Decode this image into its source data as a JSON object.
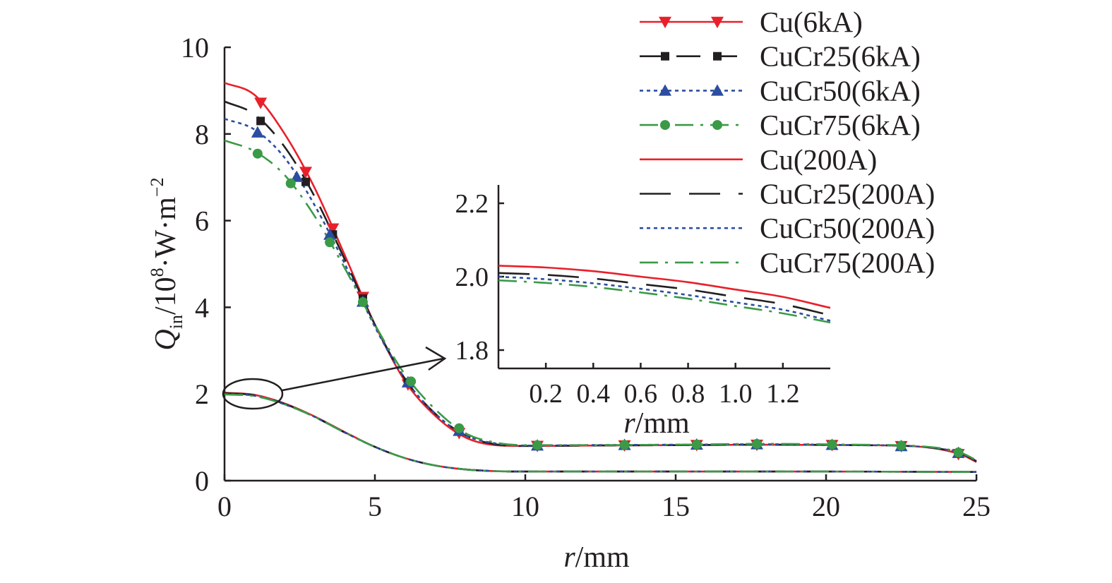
{
  "chart_data": [
    {
      "type": "line",
      "title": "",
      "xlabel": "r/mm",
      "ylabel": "Q_in/10^8·W·m^-2",
      "xlim": [
        0,
        25
      ],
      "ylim": [
        0,
        10
      ],
      "x_ticks": [
        "0",
        "5",
        "10",
        "15",
        "20",
        "25"
      ],
      "y_ticks": [
        "0",
        "2",
        "4",
        "6",
        "8",
        "10"
      ],
      "legend_position": "top-right",
      "grid": false,
      "series": [
        {
          "name": "Cu(6kA)",
          "color": "#e8202a",
          "dash": "solid",
          "marker": "triangle-down",
          "x": [
            0,
            1,
            2,
            3,
            4,
            5,
            6,
            7,
            8,
            9,
            10,
            12,
            15,
            18,
            21,
            23,
            24.5,
            25
          ],
          "y": [
            9.18,
            8.9,
            8.0,
            6.75,
            5.2,
            3.6,
            2.3,
            1.5,
            1.0,
            0.82,
            0.8,
            0.81,
            0.82,
            0.83,
            0.82,
            0.79,
            0.6,
            0.43
          ],
          "marker_x": [
            1.2,
            2.7,
            3.6,
            4.6,
            6.1,
            7.8,
            10.4,
            13.3,
            15.7,
            17.7,
            20.2,
            22.5,
            24.4
          ]
        },
        {
          "name": "CuCr25(6kA)",
          "color": "#231f20",
          "dash": "dash",
          "marker": "square",
          "x": [
            0,
            1,
            2,
            3,
            4,
            5,
            6,
            7,
            8,
            9,
            10,
            12,
            15,
            18,
            21,
            23,
            24.5,
            25
          ],
          "y": [
            8.75,
            8.45,
            7.7,
            6.55,
            5.1,
            3.6,
            2.35,
            1.55,
            1.05,
            0.84,
            0.8,
            0.81,
            0.82,
            0.83,
            0.82,
            0.79,
            0.62,
            0.45
          ],
          "marker_x": [
            1.2,
            2.7,
            3.6,
            4.6,
            6.1,
            7.8,
            10.4,
            13.3,
            15.7,
            17.7,
            20.2,
            22.5,
            24.4
          ]
        },
        {
          "name": "CuCr50(6kA)",
          "color": "#2b4ea0",
          "dash": "dot",
          "marker": "triangle-up",
          "x": [
            0,
            1,
            2,
            3,
            4,
            5,
            6,
            7,
            8,
            9,
            10,
            12,
            15,
            18,
            21,
            23,
            24.5,
            25
          ],
          "y": [
            8.35,
            8.1,
            7.45,
            6.35,
            5.0,
            3.55,
            2.35,
            1.55,
            1.05,
            0.86,
            0.81,
            0.82,
            0.83,
            0.84,
            0.82,
            0.79,
            0.63,
            0.46
          ],
          "marker_x": [
            1.1,
            2.4,
            3.5,
            4.6,
            6.1,
            7.8,
            10.4,
            13.3,
            15.7,
            17.7,
            20.2,
            22.5,
            24.4
          ]
        },
        {
          "name": "CuCr75(6kA)",
          "color": "#3a9a46",
          "dash": "dashdot",
          "marker": "circle",
          "x": [
            0,
            1,
            2,
            3,
            4,
            5,
            6,
            7,
            8,
            9,
            10,
            12,
            15,
            18,
            21,
            23,
            24.5,
            25
          ],
          "y": [
            7.85,
            7.6,
            7.05,
            6.1,
            4.9,
            3.6,
            2.45,
            1.65,
            1.1,
            0.88,
            0.82,
            0.82,
            0.83,
            0.85,
            0.83,
            0.8,
            0.64,
            0.47
          ],
          "marker_x": [
            1.1,
            2.2,
            3.5,
            4.6,
            6.2,
            7.8,
            10.4,
            13.3,
            15.7,
            17.7,
            20.2,
            22.5,
            24.4
          ]
        },
        {
          "name": "Cu(200A)",
          "color": "#e8202a",
          "dash": "solid",
          "marker": "none",
          "x": [
            0,
            1,
            2,
            3,
            4,
            5,
            6,
            7,
            8,
            9,
            10,
            12,
            15,
            20,
            25
          ],
          "y": [
            2.03,
            1.98,
            1.78,
            1.48,
            1.12,
            0.78,
            0.52,
            0.35,
            0.26,
            0.22,
            0.21,
            0.21,
            0.21,
            0.21,
            0.2
          ]
        },
        {
          "name": "CuCr25(200A)",
          "color": "#231f20",
          "dash": "longdash",
          "marker": "none",
          "x": [
            0,
            1,
            2,
            3,
            4,
            5,
            6,
            7,
            8,
            9,
            10,
            12,
            15,
            20,
            25
          ],
          "y": [
            2.02,
            1.97,
            1.77,
            1.47,
            1.11,
            0.78,
            0.52,
            0.35,
            0.26,
            0.22,
            0.21,
            0.21,
            0.21,
            0.21,
            0.2
          ]
        },
        {
          "name": "CuCr50(200A)",
          "color": "#2b4ea0",
          "dash": "dot",
          "marker": "none",
          "x": [
            0,
            1,
            2,
            3,
            4,
            5,
            6,
            7,
            8,
            9,
            10,
            12,
            15,
            20,
            25
          ],
          "y": [
            2.0,
            1.96,
            1.76,
            1.47,
            1.11,
            0.78,
            0.52,
            0.35,
            0.26,
            0.22,
            0.21,
            0.21,
            0.21,
            0.21,
            0.2
          ]
        },
        {
          "name": "CuCr75(200A)",
          "color": "#3a9a46",
          "dash": "dashdot",
          "marker": "none",
          "x": [
            0,
            1,
            2,
            3,
            4,
            5,
            6,
            7,
            8,
            9,
            10,
            12,
            15,
            20,
            25
          ],
          "y": [
            1.99,
            1.95,
            1.76,
            1.47,
            1.11,
            0.78,
            0.52,
            0.35,
            0.26,
            0.22,
            0.21,
            0.21,
            0.21,
            0.21,
            0.2
          ]
        }
      ]
    },
    {
      "type": "line",
      "title": "",
      "xlabel": "r/mm",
      "ylabel": "",
      "xlim": [
        0,
        1.4
      ],
      "ylim": [
        1.75,
        2.25
      ],
      "x_ticks": [
        "0.2",
        "0.4",
        "0.6",
        "0.8",
        "1.0",
        "1.2"
      ],
      "y_ticks": [
        "1.8",
        "2.0",
        "2.2"
      ],
      "grid": false,
      "series": [
        {
          "name": "Cu(200A)",
          "color": "#e8202a",
          "dash": "solid",
          "x": [
            0,
            0.2,
            0.4,
            0.6,
            0.8,
            1.0,
            1.2,
            1.4
          ],
          "y": [
            2.03,
            2.025,
            2.015,
            2.0,
            1.985,
            1.965,
            1.945,
            1.915
          ]
        },
        {
          "name": "CuCr25(200A)",
          "color": "#231f20",
          "dash": "longdash",
          "x": [
            0,
            0.2,
            0.4,
            0.6,
            0.8,
            1.0,
            1.2,
            1.4
          ],
          "y": [
            2.01,
            2.005,
            1.995,
            1.98,
            1.965,
            1.945,
            1.925,
            1.895
          ]
        },
        {
          "name": "CuCr50(200A)",
          "color": "#2b4ea0",
          "dash": "dot",
          "x": [
            0,
            0.2,
            0.4,
            0.6,
            0.8,
            1.0,
            1.2,
            1.4
          ],
          "y": [
            2.0,
            1.993,
            1.982,
            1.967,
            1.95,
            1.93,
            1.91,
            1.88
          ]
        },
        {
          "name": "CuCr75(200A)",
          "color": "#3a9a46",
          "dash": "dashdot",
          "x": [
            0,
            0.2,
            0.4,
            0.6,
            0.8,
            1.0,
            1.2,
            1.4
          ],
          "y": [
            1.99,
            1.983,
            1.972,
            1.957,
            1.94,
            1.92,
            1.9,
            1.875
          ]
        }
      ]
    }
  ]
}
